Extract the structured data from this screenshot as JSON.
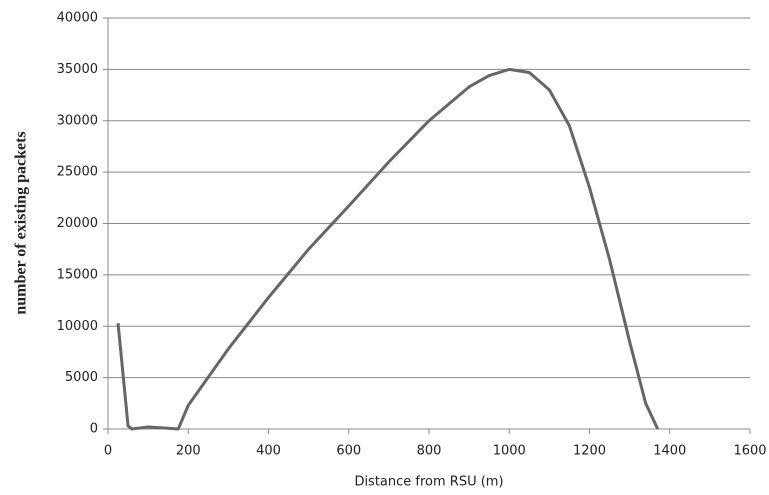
{
  "chart_data": {
    "type": "line",
    "x_label": "Distance from RSU (m)",
    "y_label": "number of existing packets",
    "x": [
      25,
      50,
      60,
      100,
      140,
      175,
      200,
      300,
      400,
      500,
      600,
      700,
      800,
      900,
      950,
      1000,
      1050,
      1100,
      1150,
      1200,
      1250,
      1300,
      1340,
      1370
    ],
    "series": [
      {
        "color": "#666666",
        "values": [
          10300,
          300,
          0,
          200,
          100,
          0,
          2300,
          7800,
          12800,
          17500,
          21700,
          26000,
          30000,
          33300,
          34400,
          35000,
          34700,
          33000,
          29500,
          23500,
          16500,
          8500,
          2500,
          0
        ]
      }
    ],
    "xlim": [
      0,
      1600
    ],
    "xticks": [
      0,
      200,
      400,
      600,
      800,
      1000,
      1200,
      1400,
      1600
    ],
    "ylim": [
      0,
      40000
    ],
    "yticks": [
      0,
      5000,
      10000,
      15000,
      20000,
      25000,
      30000,
      35000,
      40000
    ],
    "grid": true
  }
}
